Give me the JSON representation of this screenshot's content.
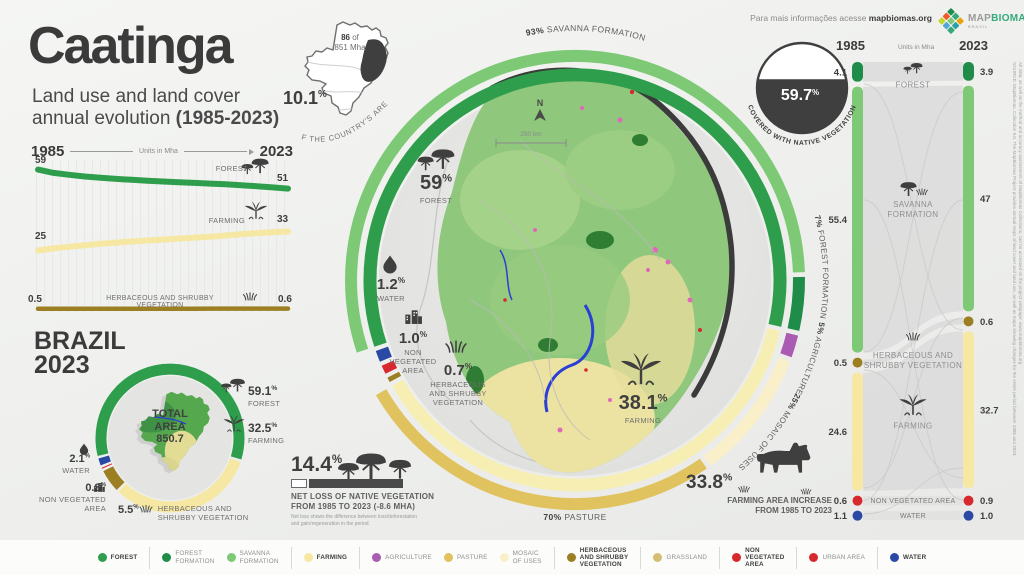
{
  "header": {
    "title": "Caatinga",
    "subtitle_1": "Land use and land cover",
    "subtitle_2": "annual evolution ",
    "subtitle_bold": "(1985-2023)"
  },
  "top_info": {
    "text": "Para mais informações acesse",
    "link": "mapbiomas.org",
    "logo_map": "MAP",
    "logo_biomas": "BIOMAS",
    "logo_sub": "BRASIL",
    "logo_colors": [
      "#1f8d49",
      "#35a97c",
      "#e9a20c",
      "#f05a28",
      "#7dc975",
      "#2aa1a6",
      "#c5d92d",
      "#52a5d8",
      "#35a97c"
    ]
  },
  "country_inset": {
    "line1_b": "86",
    "line1": " of",
    "line2": "851 Mha",
    "pct": "10.1",
    "unit": "%",
    "caption": "OF THE COUNTRY'S AREA"
  },
  "gauge": {
    "value": "59.7",
    "unit": "%",
    "caption": "COVERED WITH NATIVE VEGETATION"
  },
  "evolution": {
    "year_start": "1985",
    "year_end": "2023",
    "units": "Units in Mha",
    "forest_label": "FOREST",
    "farming_label": "FARMING",
    "herb_label": "HERBACEOUS AND SHRUBBY VEGETATION",
    "forest_start": "59",
    "forest_end": "51",
    "farming_start": "25",
    "farming_end": "33",
    "herb_start": "0.5",
    "herb_end": "0.6"
  },
  "brazil_panel": {
    "title": "BRAZIL",
    "year": "2023",
    "center_1": "TOTAL",
    "center_2": "AREA",
    "center_3": "850.7",
    "forest": {
      "pct": "59.1",
      "unit": "%",
      "label": "FOREST"
    },
    "farming": {
      "pct": "32.5",
      "unit": "%",
      "label": "FARMING"
    },
    "water": {
      "pct": "2.1",
      "unit": "%",
      "label": "WATER"
    },
    "nonveg": {
      "pct": "0.8",
      "unit": "%",
      "label": "NON VEGETATED\nAREA"
    },
    "herb": {
      "pct": "5.5",
      "unit": "%",
      "label": "HERBACEOUS AND\nSHRUBBY VEGETATION"
    }
  },
  "center": {
    "stats": {
      "forest": {
        "pct": "59",
        "unit": "%",
        "label": "FOREST"
      },
      "water": {
        "pct": "1.2",
        "unit": "%",
        "label": "WATER"
      },
      "nonveg": {
        "pct": "1.0",
        "unit": "%",
        "label": "NON\nVEGETATED\nAREA"
      },
      "herb": {
        "pct": "0.7",
        "unit": "%",
        "label": "HERBACEOUS\nAND SHRUBBY\nVEGETATION"
      },
      "farming": {
        "pct": "38.1",
        "unit": "%",
        "label": "FARMING"
      }
    },
    "ring_labels": {
      "savanna": {
        "pct": "93%",
        "label": " SAVANNA FORMATION"
      },
      "ff": {
        "pct": "7%",
        "label": " FOREST FORMATION"
      },
      "agri": {
        "pct": "5%",
        "label": " AGRICULTURE"
      },
      "mosaic": {
        "pct": "25%",
        "label": " MOSAIC OF USES"
      },
      "pasture": {
        "pct": "70%",
        "label": " PASTURE"
      }
    },
    "map": {
      "north": "N",
      "scale": "250 km"
    }
  },
  "netloss": {
    "pct": "14.4",
    "unit": "%",
    "line1": "NET LOSS OF NATIVE VEGETATION",
    "line2": "FROM 1985 TO 2023 (-8.6 MHA)",
    "note": "Net loss shows the difference between loss/deforestation\nand gain/regeneration in the period."
  },
  "farm_increase": {
    "pct": "33.8",
    "unit": "%",
    "line1": "FARMING AREA INCREASE",
    "line2": "FROM 1985 TO 2023"
  },
  "sankey_head": {
    "year_start": "1985",
    "units": "Units in Mha",
    "year_end": "2023"
  },
  "source_note": "SOURCE: MapBiomas, Collection 9.0. The MapBiomas Project provides annual maps of land cover and land use, as well as maps showing changes for the entire period between 1985 and 2023.",
  "source_note2": "All data, as well as the method and accuracy assessment of MapBiomas Collections, can be accessed on the project webpage: www.mapbiomas.org",
  "legend": {
    "items": [
      {
        "label": "FOREST",
        "color": "#2f9e4c",
        "bold": true
      },
      {
        "sep": true
      },
      {
        "label": "FOREST\nFORMATION",
        "color": "#1f8d49"
      },
      {
        "label": "SAVANNA\nFORMATION",
        "color": "#7dc975"
      },
      {
        "sep": true
      },
      {
        "label": "FARMING",
        "color": "#f6e7a2",
        "bold": true
      },
      {
        "sep": true
      },
      {
        "label": "AGRICULTURE",
        "color": "#aa5bb2"
      },
      {
        "label": "PASTURE",
        "color": "#e0c25e"
      },
      {
        "label": "MOSAIC\nOF USES",
        "color": "#f9efc9"
      },
      {
        "sep": true
      },
      {
        "label": "HERBACEOUS\nAND SHRUBBY\nVEGETATION",
        "color": "#9c7f22",
        "bold": true
      },
      {
        "sep": true
      },
      {
        "label": "GRASSLAND",
        "color": "#d5bd74"
      },
      {
        "sep": true
      },
      {
        "label": "NON\nVEGETATED\nAREA",
        "color": "#d7282e",
        "bold": true
      },
      {
        "sep": true
      },
      {
        "label": "URBAN AREA",
        "color": "#d7282e"
      },
      {
        "sep": true
      },
      {
        "label": "WATER",
        "color": "#2a49a5",
        "bold": true
      }
    ]
  },
  "chart_data": [
    {
      "id": "evolution",
      "type": "line",
      "title": "Land use and land cover annual evolution, Caatinga (Units in Mha)",
      "x_range": [
        1985,
        2023
      ],
      "ylabel": "Mha",
      "grid": true,
      "series": [
        {
          "name": "FOREST",
          "color": "#2f9e4c",
          "start": 59,
          "end": 51,
          "values": [
            59,
            57.6,
            56.8,
            56.1,
            55.6,
            55.1,
            54.7,
            54.3,
            54,
            53.7,
            53.4,
            53.1,
            52.8,
            52.4,
            52,
            51.5,
            51
          ]
        },
        {
          "name": "FARMING",
          "color": "#f6e7a2",
          "start": 25,
          "end": 33,
          "values": [
            25,
            25.9,
            26.6,
            27.2,
            27.8,
            28.3,
            28.8,
            29.2,
            29.6,
            30,
            30.4,
            30.8,
            31.3,
            31.8,
            32.3,
            32.7,
            33
          ]
        },
        {
          "name": "HERBACEOUS AND SHRUBBY VEGETATION",
          "color": "#9c7f22",
          "start": 0.5,
          "end": 0.6,
          "values": [
            0.5,
            0.5,
            0.5,
            0.5,
            0.5,
            0.5,
            0.55,
            0.55,
            0.55,
            0.55,
            0.55,
            0.6,
            0.6,
            0.6,
            0.6,
            0.6,
            0.6
          ]
        }
      ]
    },
    {
      "id": "brazil_2023",
      "type": "donut",
      "title": "BRAZIL 2023 — total area 850.7 Mha",
      "start_deg": 255,
      "slices": [
        {
          "label": "FOREST",
          "pct": 59.1,
          "color": "#2f9e4c"
        },
        {
          "label": "FARMING",
          "pct": 32.5,
          "color": "#f6e7a2"
        },
        {
          "label": "HERBACEOUS AND SHRUBBY VEGETATION",
          "pct": 5.5,
          "color": "#9c7f22"
        },
        {
          "label": "NON VEGETATED AREA",
          "pct": 0.8,
          "color": "#d7282e"
        },
        {
          "label": "WATER",
          "pct": 2.1,
          "color": "#2a49a5"
        }
      ]
    },
    {
      "id": "caatinga_2023",
      "type": "donut",
      "title": "Caatinga 2023 land cover",
      "start_deg": 251,
      "slices": [
        {
          "label": "FOREST",
          "pct": 59,
          "color": "#2f9e4c"
        },
        {
          "label": "FARMING",
          "pct": 38.1,
          "color": "#f7eeb4"
        },
        {
          "label": "HERBACEOUS AND SHRUBBY VEGETATION",
          "pct": 0.7,
          "color": "#9c7f22"
        },
        {
          "label": "NON VEGETATED AREA",
          "pct": 1.0,
          "color": "#d7282e"
        },
        {
          "label": "WATER",
          "pct": 1.2,
          "color": "#2a49a5"
        }
      ]
    },
    {
      "id": "caatinga_2023_subclasses",
      "type": "donut",
      "title": "Caatinga 2023 subclasses",
      "start_deg": 251,
      "slices": [
        {
          "label": "SAVANNA FORMATION (93% of forest)",
          "pct": 54.9,
          "color": "#7dc975"
        },
        {
          "label": "FOREST FORMATION (7% of forest)",
          "pct": 4.1,
          "color": "#1f8d49"
        },
        {
          "label": "AGRICULTURE (5% of farming)",
          "pct": 1.9,
          "color": "#aa5bb2"
        },
        {
          "label": "MOSAIC OF USES (25% of farming)",
          "pct": 9.5,
          "color": "#f9efc9"
        },
        {
          "label": "PASTURE (70% of farming)",
          "pct": 26.7,
          "color": "#e0c25e"
        }
      ]
    },
    {
      "id": "native_cover",
      "type": "gauge",
      "value": 59.7,
      "label": "COVERED WITH NATIVE VEGETATION",
      "color": "#3f3f3f"
    },
    {
      "id": "net_loss",
      "type": "bar",
      "categories": [
        "NET LOSS OF NATIVE VEGETATION FROM 1985 TO 2023"
      ],
      "values": [
        14.4
      ],
      "note": "-8.6 MHA"
    },
    {
      "id": "transitions",
      "type": "sankey",
      "years": [
        "1985",
        "2023"
      ],
      "rows": [
        {
          "label": "FOREST",
          "lines": [
            "FOREST"
          ],
          "icon": "trees",
          "v1985": "4.1",
          "v2023": "3.9",
          "color": "#1f8d49",
          "style": "bar"
        },
        {
          "label": "SAVANNA FORMATION",
          "lines": [
            "SAVANNA",
            "FORMATION"
          ],
          "icon": "treegrass",
          "v1985": "55.4",
          "v2023": "47",
          "color": "#7dc975",
          "style": "bar"
        },
        {
          "label": "HERBACEOUS AND SHRUBBY VEGETATION",
          "lines": [
            "HERBACEOUS AND",
            "SHRUBBY VEGETATION"
          ],
          "icon": "grass",
          "v1985": "0.5",
          "v2023": "0.6",
          "color": "#9c7f22",
          "style": "dot"
        },
        {
          "label": "FARMING",
          "lines": [
            "FARMING"
          ],
          "icon": "farm",
          "v1985": "24.6",
          "v2023": "32.7",
          "color": "#f6e7a2",
          "style": "bar"
        },
        {
          "label": "NON VEGETATED AREA",
          "lines": [
            "NON VEGETATED AREA"
          ],
          "v1985": "0.6",
          "v2023": "0.9",
          "color": "#d7282e",
          "style": "row"
        },
        {
          "label": "WATER",
          "lines": [
            "WATER"
          ],
          "v1985": "1.1",
          "v2023": "1.0",
          "color": "#2a49a5",
          "style": "row"
        }
      ]
    }
  ]
}
